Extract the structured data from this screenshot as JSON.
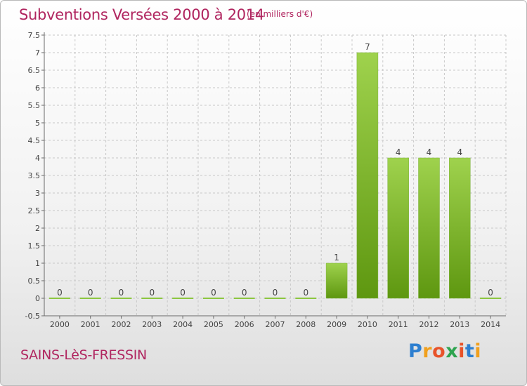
{
  "header": {
    "title": "Subventions Versées 2000 à 2014",
    "unit_note": "(en milliers d'€)"
  },
  "footer": {
    "commune": "SAINS-LèS-FRESSIN",
    "brand": "Proxiti"
  },
  "colors": {
    "title": "#b0255f",
    "bar_light": "#9fd24d",
    "bar_dark": "#5e9710",
    "grid": "#c8c8c8",
    "axis": "#6a6a6a"
  },
  "chart_data": {
    "type": "bar",
    "title": "Subventions Versées 2000 à 2014",
    "subtitle": "(en milliers d'€)",
    "xlabel": "",
    "ylabel": "",
    "categories": [
      "2000",
      "2001",
      "2002",
      "2003",
      "2004",
      "2005",
      "2006",
      "2007",
      "2008",
      "2009",
      "2010",
      "2011",
      "2012",
      "2013",
      "2014"
    ],
    "values": [
      0,
      0,
      0,
      0,
      0,
      0,
      0,
      0,
      0,
      1,
      7,
      4,
      4,
      4,
      0
    ],
    "data_labels": [
      "0",
      "0",
      "0",
      "0",
      "0",
      "0",
      "0",
      "0",
      "0",
      "1",
      "7",
      "4",
      "4",
      "4",
      "0"
    ],
    "ylim": [
      -0.5,
      7.5
    ],
    "yticks": [
      -0.5,
      0,
      0.5,
      1,
      1.5,
      2,
      2.5,
      3,
      3.5,
      4,
      4.5,
      5,
      5.5,
      6,
      6.5,
      7,
      7.5
    ],
    "ytick_labels": [
      "-0.5",
      "0",
      "0.5",
      "1",
      "1.5",
      "2",
      "2.5",
      "3",
      "3.5",
      "4",
      "4.5",
      "5",
      "5.5",
      "6",
      "6.5",
      "7",
      "7.5"
    ],
    "grid": true,
    "legend": "none"
  }
}
